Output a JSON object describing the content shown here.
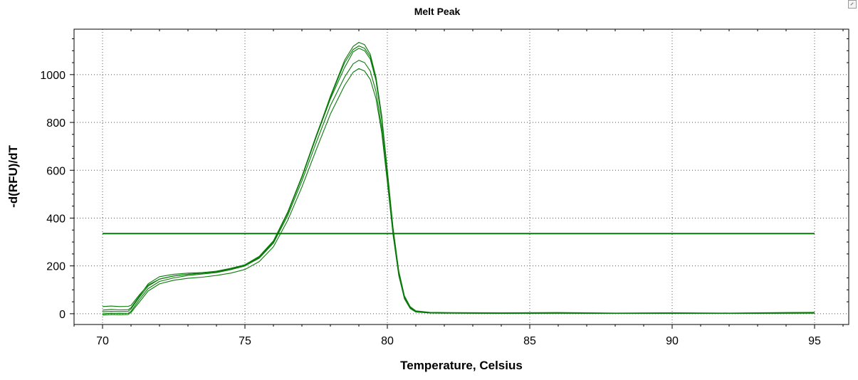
{
  "chart_data": {
    "type": "line",
    "title": "Melt Peak",
    "xlabel": "Temperature, Celsius",
    "ylabel": "-d(RFU)/dT",
    "xlim": [
      69,
      96.2
    ],
    "ylim": [
      -45,
      1190
    ],
    "xticks": [
      70,
      75,
      80,
      85,
      90,
      95
    ],
    "yticks": [
      0,
      200,
      400,
      600,
      800,
      1000
    ],
    "grid": true,
    "legend": "none",
    "line_color": "#0a7a0a",
    "threshold": {
      "value": 335,
      "x": [
        70,
        95
      ],
      "color": "#0a7a0a"
    },
    "series": [
      {
        "x": [
          70,
          70.3,
          70.6,
          70.9,
          71.0,
          71.3,
          71.6,
          72.0,
          72.5,
          73.0,
          73.5,
          74.0,
          74.5,
          75.0,
          75.5,
          76.0,
          76.5,
          77.0,
          77.5,
          78.0,
          78.5,
          78.8,
          79.0,
          79.2,
          79.4,
          79.6,
          79.8,
          80.0,
          80.2,
          80.4,
          80.6,
          80.8,
          81.0,
          81.5,
          82,
          84,
          86,
          88,
          90,
          92,
          94,
          95
        ],
        "y": [
          30,
          32,
          30,
          31,
          35,
          80,
          120,
          145,
          158,
          165,
          170,
          175,
          185,
          200,
          235,
          300,
          420,
          570,
          740,
          910,
          1060,
          1118,
          1135,
          1125,
          1085,
          990,
          830,
          600,
          360,
          180,
          75,
          30,
          12,
          6,
          5,
          4,
          5,
          3,
          4,
          3,
          5,
          6
        ]
      },
      {
        "x": [
          70,
          70.3,
          70.6,
          70.9,
          71.0,
          71.3,
          71.6,
          72.0,
          72.5,
          73.0,
          73.5,
          74.0,
          74.5,
          75.0,
          75.5,
          76.0,
          76.5,
          77.0,
          77.5,
          78.0,
          78.5,
          78.8,
          79.0,
          79.2,
          79.4,
          79.6,
          79.8,
          80.0,
          80.2,
          80.4,
          80.6,
          80.8,
          81.0,
          81.5,
          82,
          84,
          86,
          88,
          90,
          92,
          94,
          95
        ],
        "y": [
          15,
          18,
          16,
          17,
          25,
          75,
          125,
          155,
          165,
          170,
          172,
          178,
          190,
          205,
          240,
          305,
          425,
          575,
          745,
          905,
          1050,
          1105,
          1120,
          1110,
          1075,
          985,
          825,
          595,
          355,
          175,
          72,
          28,
          10,
          5,
          4,
          3,
          4,
          2,
          3,
          2,
          4,
          5
        ]
      },
      {
        "x": [
          70,
          70.3,
          70.6,
          70.9,
          71.0,
          71.3,
          71.6,
          72.0,
          72.5,
          73.0,
          73.5,
          74.0,
          74.5,
          75.0,
          75.5,
          76.0,
          76.5,
          77.0,
          77.5,
          78.0,
          78.5,
          78.8,
          79.0,
          79.2,
          79.4,
          79.6,
          79.8,
          80.0,
          80.2,
          80.4,
          80.6,
          80.8,
          81.0,
          81.5,
          82,
          84,
          86,
          88,
          90,
          92,
          94,
          95
        ],
        "y": [
          8,
          10,
          9,
          10,
          20,
          70,
          115,
          145,
          158,
          165,
          170,
          176,
          188,
          203,
          238,
          302,
          420,
          570,
          738,
          898,
          1030,
          1095,
          1110,
          1100,
          1065,
          975,
          815,
          590,
          350,
          170,
          70,
          26,
          9,
          4,
          3,
          2,
          3,
          2,
          3,
          2,
          3,
          4
        ]
      },
      {
        "x": [
          70,
          70.3,
          70.6,
          70.9,
          71.0,
          71.3,
          71.6,
          72.0,
          72.5,
          73.0,
          73.5,
          74.0,
          74.5,
          75.0,
          75.5,
          76.0,
          76.5,
          77.0,
          77.5,
          78.0,
          78.5,
          78.8,
          79.0,
          79.2,
          79.4,
          79.6,
          79.8,
          80.0,
          80.2,
          80.4,
          80.6,
          80.8,
          81.0,
          81.5,
          82,
          84,
          86,
          88,
          90,
          92,
          94,
          95
        ],
        "y": [
          0,
          2,
          1,
          2,
          10,
          60,
          105,
          135,
          150,
          160,
          166,
          172,
          184,
          200,
          232,
          295,
          410,
          555,
          715,
          870,
          990,
          1045,
          1060,
          1050,
          1015,
          930,
          780,
          565,
          335,
          165,
          65,
          24,
          8,
          4,
          3,
          2,
          2,
          1,
          2,
          1,
          2,
          3
        ]
      },
      {
        "x": [
          70,
          70.3,
          70.6,
          70.9,
          71.0,
          71.3,
          71.6,
          72.0,
          72.5,
          73.0,
          73.5,
          74.0,
          74.5,
          75.0,
          75.5,
          76.0,
          76.5,
          77.0,
          77.5,
          78.0,
          78.5,
          78.8,
          79.0,
          79.2,
          79.4,
          79.6,
          79.8,
          80.0,
          80.2,
          80.4,
          80.6,
          80.8,
          81.0,
          81.5,
          82,
          84,
          86,
          88,
          90,
          92,
          94,
          95
        ],
        "y": [
          -5,
          -3,
          -4,
          -3,
          5,
          50,
          95,
          125,
          140,
          148,
          153,
          160,
          170,
          185,
          218,
          280,
          390,
          530,
          685,
          835,
          955,
          1010,
          1025,
          1015,
          980,
          900,
          760,
          550,
          330,
          160,
          62,
          22,
          7,
          3,
          2,
          1,
          2,
          1,
          1,
          1,
          2,
          2
        ]
      }
    ]
  }
}
